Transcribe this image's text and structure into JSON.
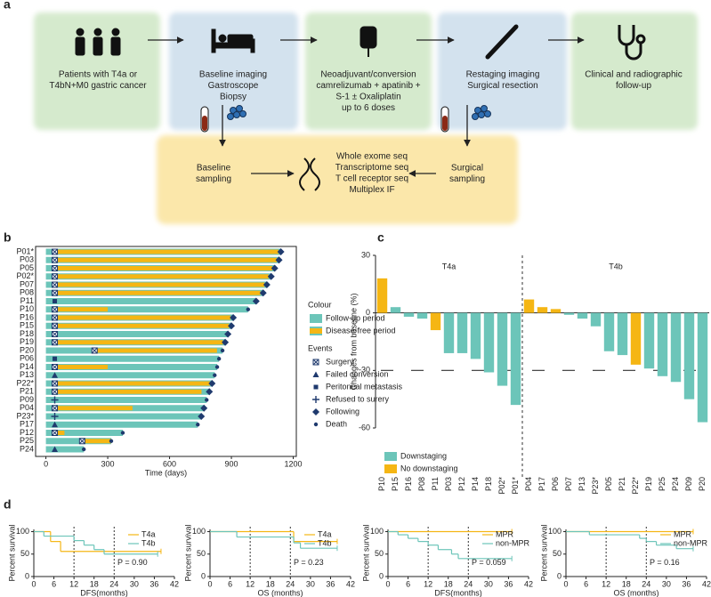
{
  "panel_labels": [
    "a",
    "b",
    "c",
    "d"
  ],
  "workflow": {
    "nodes": [
      {
        "lines": [
          "Patients with T4a or",
          "T4bN+M0 gastric cancer"
        ]
      },
      {
        "lines": [
          "Baseline imaging",
          "Gastroscope",
          "Biopsy"
        ]
      },
      {
        "lines": [
          "Neoadjuvant/conversion",
          "camrelizumab + apatinib +",
          "S-1 ± Oxaliplatin",
          "up to 6 doses"
        ]
      },
      {
        "lines": [
          "Restaging imaging",
          "Surgical resection"
        ]
      },
      {
        "lines": [
          "Clinical and radiographic",
          "follow-up"
        ]
      }
    ],
    "sampling": [
      {
        "lines": [
          "Baseline",
          "sampling"
        ]
      },
      {
        "lines": [
          "Surgical",
          "sampling"
        ]
      }
    ],
    "sequencing": {
      "lines": [
        "Whole exome seq",
        "Transcriptome seq",
        "T cell receptor seq",
        "Multiplex IF"
      ]
    }
  },
  "chart_data": [
    {
      "type": "swimmer",
      "xlabel": "Time (days)",
      "xlim": [
        -50,
        1215
      ],
      "xticks": [
        0,
        300,
        600,
        900,
        1200
      ],
      "colors": {
        "follow_up": "#6cc5b9",
        "disease_free": "#f5b614",
        "marker": "#1f3a6e"
      },
      "legend": {
        "colour_title": "Colour",
        "period_names": [
          "Follow-up period",
          "Disease-free period"
        ],
        "events_title": "Events",
        "event_names": [
          "Surgery",
          "Failed conversion",
          "Peritoneal metastasis",
          "Refused to surery",
          "Following",
          "Death"
        ]
      },
      "patients": [
        {
          "name": "P01*",
          "follow_up": 1140,
          "dfs_start": 43,
          "dfs_end": 1128,
          "event": 0,
          "event_day": 43,
          "outcome": 4
        },
        {
          "name": "P03",
          "follow_up": 1131,
          "dfs_start": 43,
          "dfs_end": 1120,
          "event": 0,
          "event_day": 43,
          "outcome": 4
        },
        {
          "name": "P05",
          "follow_up": 1110,
          "dfs_start": 43,
          "dfs_end": 1098,
          "event": 0,
          "event_day": 43,
          "outcome": 4
        },
        {
          "name": "P02*",
          "follow_up": 1093,
          "dfs_start": 43,
          "dfs_end": 1080,
          "event": 0,
          "event_day": 43,
          "outcome": 4
        },
        {
          "name": "P07",
          "follow_up": 1072,
          "dfs_start": 43,
          "dfs_end": 1060,
          "event": 0,
          "event_day": 43,
          "outcome": 4
        },
        {
          "name": "P08",
          "follow_up": 1054,
          "dfs_start": 43,
          "dfs_end": 1040,
          "event": 0,
          "event_day": 43,
          "outcome": 4
        },
        {
          "name": "P11",
          "follow_up": 1020,
          "event": 2,
          "event_day": 43,
          "outcome": 4
        },
        {
          "name": "P10",
          "follow_up": 981,
          "dfs_start": 43,
          "dfs_end": 300,
          "event": 0,
          "event_day": 43,
          "outcome": 5
        },
        {
          "name": "P16",
          "follow_up": 909,
          "dfs_start": 43,
          "dfs_end": 895,
          "event": 0,
          "event_day": 43,
          "outcome": 4
        },
        {
          "name": "P15",
          "follow_up": 900,
          "dfs_start": 43,
          "dfs_end": 888,
          "event": 0,
          "event_day": 43,
          "outcome": 4
        },
        {
          "name": "P18",
          "follow_up": 883,
          "event": 0,
          "event_day": 43,
          "outcome": 4
        },
        {
          "name": "P19",
          "follow_up": 870,
          "dfs_start": 43,
          "dfs_end": 858,
          "event": 0,
          "event_day": 43,
          "outcome": 4
        },
        {
          "name": "P20",
          "follow_up": 857,
          "dfs_start": 236,
          "dfs_end": 830,
          "event": 0,
          "event_day": 236,
          "outcome": 5
        },
        {
          "name": "P06",
          "follow_up": 840,
          "event": 2,
          "event_day": 43,
          "outcome": 5
        },
        {
          "name": "P14",
          "follow_up": 831,
          "dfs_start": 43,
          "dfs_end": 300,
          "event": 0,
          "event_day": 43,
          "outcome": 5
        },
        {
          "name": "P13",
          "follow_up": 819,
          "event": 1,
          "event_day": 43,
          "outcome": 5
        },
        {
          "name": "P22*",
          "follow_up": 806,
          "dfs_start": 43,
          "dfs_end": 795,
          "event": 0,
          "event_day": 43,
          "outcome": 4
        },
        {
          "name": "P21",
          "follow_up": 793,
          "dfs_start": 43,
          "dfs_end": 755,
          "event": 0,
          "event_day": 43,
          "outcome": 4
        },
        {
          "name": "P09",
          "follow_up": 780,
          "event": 3,
          "event_day": 43,
          "outcome": 5
        },
        {
          "name": "P04",
          "follow_up": 767,
          "dfs_start": 43,
          "dfs_end": 420,
          "event": 0,
          "event_day": 43,
          "outcome": 4
        },
        {
          "name": "P23*",
          "follow_up": 754,
          "event": 3,
          "event_day": 43,
          "outcome": 4
        },
        {
          "name": "P17",
          "follow_up": 737,
          "event": 1,
          "event_day": 43,
          "outcome": 5
        },
        {
          "name": "P12",
          "follow_up": 373,
          "dfs_start": 43,
          "dfs_end": 90,
          "event": 0,
          "event_day": 43,
          "outcome": 5
        },
        {
          "name": "P25",
          "follow_up": 317,
          "dfs_start": 176,
          "dfs_end": 317,
          "event": 0,
          "event_day": 176,
          "outcome": 5
        },
        {
          "name": "P24",
          "follow_up": 184,
          "event": 1,
          "event_day": 43,
          "outcome": 5
        }
      ]
    },
    {
      "type": "waterfall",
      "ylabel": "Changes from baseline (%)",
      "ylim": [
        -60,
        30
      ],
      "yticks": [
        30,
        0,
        -30,
        -60
      ],
      "reference_line": -30,
      "legend": [
        {
          "name": "Downstaging",
          "color": "#6cc5b9"
        },
        {
          "name": "No downstaging",
          "color": "#f5b614"
        }
      ],
      "groups": [
        {
          "name": "T4a",
          "categories": [
            "P10",
            "P15",
            "P16",
            "P08",
            "P11",
            "P03",
            "P12",
            "P14",
            "P18",
            "P02*",
            "P01*"
          ],
          "values": [
            18,
            3,
            -2,
            -3,
            -9,
            -21,
            -21,
            -24,
            -31,
            -38,
            -48
          ],
          "legend_index": [
            1,
            0,
            0,
            0,
            1,
            0,
            0,
            0,
            0,
            0,
            0
          ]
        },
        {
          "name": "T4b",
          "categories": [
            "P04",
            "P17",
            "P06",
            "P07",
            "P13",
            "P23*",
            "P05",
            "P21",
            "P22*",
            "P19",
            "P25",
            "P24",
            "P09",
            "P20"
          ],
          "values": [
            7,
            3,
            2,
            -1,
            -3,
            -7,
            -20,
            -22,
            -27,
            -29,
            -33,
            -36,
            -45,
            -57
          ],
          "legend_index": [
            1,
            1,
            1,
            0,
            0,
            0,
            0,
            0,
            1,
            0,
            0,
            0,
            0,
            0
          ]
        }
      ]
    },
    {
      "type": "km",
      "ylabel": "Percent survival",
      "xlabel": "DFS(months)",
      "xlim": [
        0,
        42
      ],
      "xticks": [
        0,
        6,
        12,
        18,
        24,
        30,
        36,
        42
      ],
      "ylim": [
        0,
        105
      ],
      "yticks": [
        0,
        50,
        100
      ],
      "reference_lines": [
        12,
        24
      ],
      "annotation": "P = 0.90",
      "legend": "upper right",
      "series": [
        {
          "name": "T4a",
          "color": "#f5b614",
          "times": [
            0,
            5,
            8,
            38
          ],
          "values": [
            100,
            78,
            56,
            56
          ]
        },
        {
          "name": "T4b",
          "color": "#6cc5b9",
          "times": [
            0,
            3,
            12,
            15,
            18,
            21,
            37
          ],
          "values": [
            100,
            90,
            80,
            70,
            60,
            50,
            50
          ]
        }
      ]
    },
    {
      "type": "km",
      "ylabel": "Percent survival",
      "xlabel": "OS (months)",
      "xlim": [
        0,
        42
      ],
      "xticks": [
        0,
        6,
        12,
        18,
        24,
        30,
        36,
        42
      ],
      "ylim": [
        0,
        105
      ],
      "yticks": [
        0,
        50,
        100
      ],
      "reference_lines": [
        12,
        24
      ],
      "annotation": "P = 0.23",
      "legend": "upper right",
      "series": [
        {
          "name": "T4a",
          "color": "#f5b614",
          "times": [
            0,
            25,
            38
          ],
          "values": [
            100,
            78,
            78
          ]
        },
        {
          "name": "T4b",
          "color": "#6cc5b9",
          "times": [
            0,
            8,
            25,
            27,
            38
          ],
          "values": [
            100,
            88,
            75,
            63,
            63
          ]
        }
      ]
    },
    {
      "type": "km",
      "ylabel": "Percent survival",
      "xlabel": "DFS(months)",
      "xlim": [
        0,
        42
      ],
      "xticks": [
        0,
        6,
        12,
        18,
        24,
        30,
        36,
        42
      ],
      "ylim": [
        0,
        105
      ],
      "yticks": [
        0,
        50,
        100
      ],
      "reference_lines": [
        12,
        24
      ],
      "annotation": "P = 0.059",
      "legend": "upper right",
      "series": [
        {
          "name": "MPR",
          "color": "#f5b614",
          "times": [
            0,
            37
          ],
          "values": [
            100,
            100
          ]
        },
        {
          "name": "non-MPR",
          "color": "#6cc5b9",
          "times": [
            0,
            3,
            6,
            9,
            12,
            15,
            19,
            21,
            37
          ],
          "values": [
            100,
            93,
            85,
            78,
            70,
            60,
            50,
            40,
            40
          ]
        }
      ]
    },
    {
      "type": "km",
      "ylabel": "Percent survival",
      "xlabel": "OS (months)",
      "xlim": [
        0,
        42
      ],
      "xticks": [
        0,
        6,
        12,
        18,
        24,
        30,
        36,
        42
      ],
      "ylim": [
        0,
        105
      ],
      "yticks": [
        0,
        50,
        100
      ],
      "reference_lines": [
        12,
        24
      ],
      "annotation": "P = 0.16",
      "legend": "upper right",
      "series": [
        {
          "name": "MPR",
          "color": "#f5b614",
          "times": [
            0,
            38
          ],
          "values": [
            100,
            100
          ]
        },
        {
          "name": "non-MPR",
          "color": "#6cc5b9",
          "times": [
            0,
            7,
            22,
            24,
            27,
            33,
            38
          ],
          "values": [
            100,
            93,
            85,
            78,
            70,
            62,
            62
          ]
        }
      ]
    }
  ]
}
